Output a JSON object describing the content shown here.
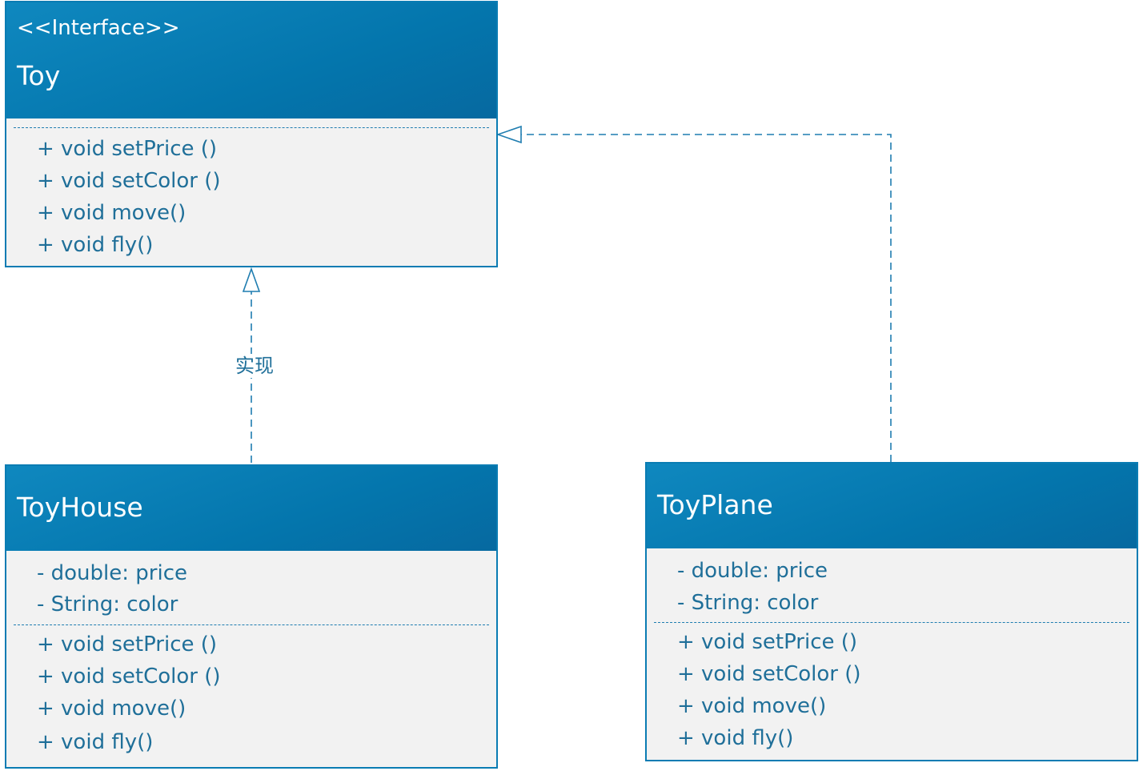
{
  "colors": {
    "header_blue": "#0a7cb3",
    "body_gray": "#f2f2f2",
    "text_blue": "#1f6f99",
    "connector": "#1f7db0"
  },
  "toy": {
    "stereotype": "<<Interface>>",
    "name": "Toy",
    "methods": [
      "+ void setPrice ()",
      "+ void setColor ()",
      "+ void move()",
      "+ void fly()"
    ]
  },
  "toy_house": {
    "name": "ToyHouse",
    "attributes": [
      "- double: price",
      "- String: color"
    ],
    "methods": [
      "+ void setPrice ()",
      "+ void setColor ()",
      "+ void move()",
      "+ void fly()"
    ]
  },
  "toy_plane": {
    "name": "ToyPlane",
    "attributes": [
      "- double: price",
      "- String: color"
    ],
    "methods": [
      "+ void setPrice ()",
      "+ void setColor ()",
      "+ void move()",
      "+ void fly()"
    ]
  },
  "relations": {
    "house_to_toy_label": "实现"
  }
}
